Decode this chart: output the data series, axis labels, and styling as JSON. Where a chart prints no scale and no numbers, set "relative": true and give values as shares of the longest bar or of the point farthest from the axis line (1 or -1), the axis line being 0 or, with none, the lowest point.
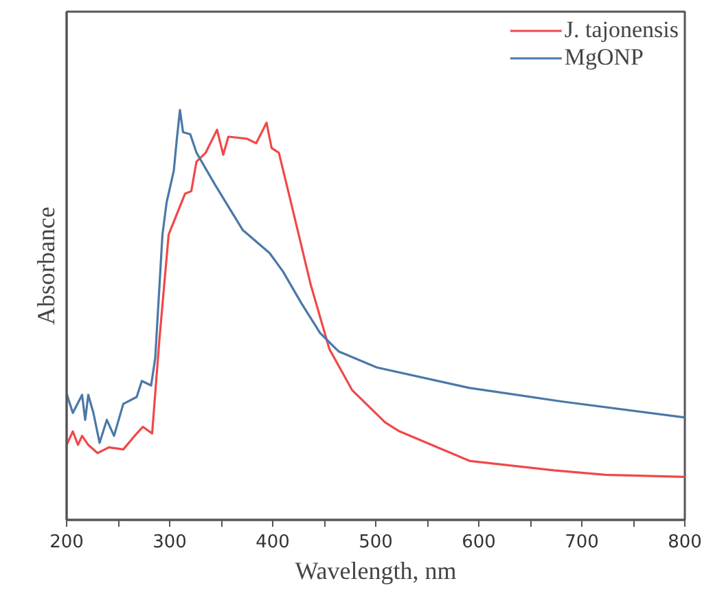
{
  "chart_data": {
    "type": "line",
    "xlabel": "Wavelength, nm",
    "ylabel": "Absorbance",
    "relative": true,
    "tick_labels": "x",
    "legend": "top right",
    "grid": false,
    "xlim": [
      200,
      800
    ],
    "xticks": [
      200,
      {
        "value": 250,
        "label": null
      },
      300,
      {
        "value": 350,
        "label": null
      },
      400,
      {
        "value": 450,
        "label": null
      },
      500,
      {
        "value": 550,
        "label": null
      },
      600,
      {
        "value": 650,
        "label": null
      },
      700,
      {
        "value": 750,
        "label": null
      },
      800
    ],
    "series": [
      {
        "name": "J. tajonensis",
        "color": "#f04848",
        "x": [
          200,
          206,
          211,
          215,
          221,
          230,
          241,
          255,
          266,
          274,
          283,
          290,
          299,
          306,
          315,
          321,
          326,
          335,
          346,
          352,
          357,
          375,
          384,
          394,
          399,
          406,
          420,
          437,
          455,
          477,
          509,
          523,
          591,
          673,
          723,
          800
        ],
        "values": [
          0.183,
          0.216,
          0.183,
          0.205,
          0.183,
          0.163,
          0.177,
          0.172,
          0.205,
          0.227,
          0.211,
          0.439,
          0.696,
          0.74,
          0.796,
          0.802,
          0.874,
          0.896,
          0.952,
          0.891,
          0.935,
          0.93,
          0.919,
          0.969,
          0.907,
          0.896,
          0.751,
          0.573,
          0.417,
          0.317,
          0.238,
          0.216,
          0.144,
          0.121,
          0.11,
          0.105
        ]
      },
      {
        "name": "MgONP",
        "color": "#4a78a8",
        "x": [
          200,
          206,
          215,
          218,
          221,
          226,
          232,
          239,
          246,
          255,
          268,
          273,
          282,
          286,
          293,
          297,
          304,
          307,
          310,
          313,
          320,
          326,
          344,
          371,
          397,
          410,
          428,
          446,
          464,
          501,
          591,
          680,
          800
        ],
        "values": [
          0.308,
          0.261,
          0.305,
          0.244,
          0.305,
          0.261,
          0.188,
          0.244,
          0.205,
          0.283,
          0.3,
          0.339,
          0.328,
          0.395,
          0.696,
          0.774,
          0.852,
          0.93,
          1,
          0.946,
          0.941,
          0.896,
          0.818,
          0.707,
          0.651,
          0.606,
          0.528,
          0.456,
          0.411,
          0.372,
          0.322,
          0.289,
          0.25
        ]
      }
    ]
  }
}
